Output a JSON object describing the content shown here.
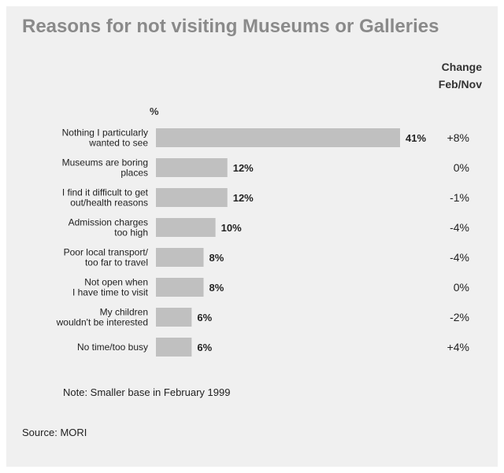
{
  "title": "Reasons for not visiting Museums or Galleries",
  "change_header": {
    "line1": "Change",
    "line2": "Feb/Nov"
  },
  "note": "Note: Smaller base in February 1999",
  "source": {
    "label": "Source:",
    "value": "MORI"
  },
  "colors": {
    "bar": "#c0c0c0",
    "panel": "#f0f0f0",
    "title": "#8a8a8a",
    "text": "#222222"
  },
  "chart_data": {
    "type": "bar",
    "orientation": "horizontal",
    "unit_label": "%",
    "categories": [
      [
        "Nothing I particularly",
        "wanted to see"
      ],
      [
        "Museums are boring",
        "places"
      ],
      [
        "I find it difficult to get",
        "out/health reasons"
      ],
      [
        "Admission charges",
        "too high"
      ],
      [
        "Poor local transport/",
        "too far to travel"
      ],
      [
        "Not open when",
        "I have time to visit"
      ],
      [
        "My children",
        "wouldn't be interested"
      ],
      [
        "No time/too busy"
      ]
    ],
    "values": [
      41,
      12,
      12,
      10,
      8,
      8,
      6,
      6
    ],
    "value_labels": [
      "41%",
      "12%",
      "12%",
      "10%",
      "8%",
      "8%",
      "6%",
      "6%"
    ],
    "change": [
      "+8%",
      "0%",
      "-1%",
      "-4%",
      "-4%",
      "0%",
      "-2%",
      "+4%"
    ],
    "xlim": [
      0,
      41
    ],
    "grid": false,
    "legend": "none"
  }
}
